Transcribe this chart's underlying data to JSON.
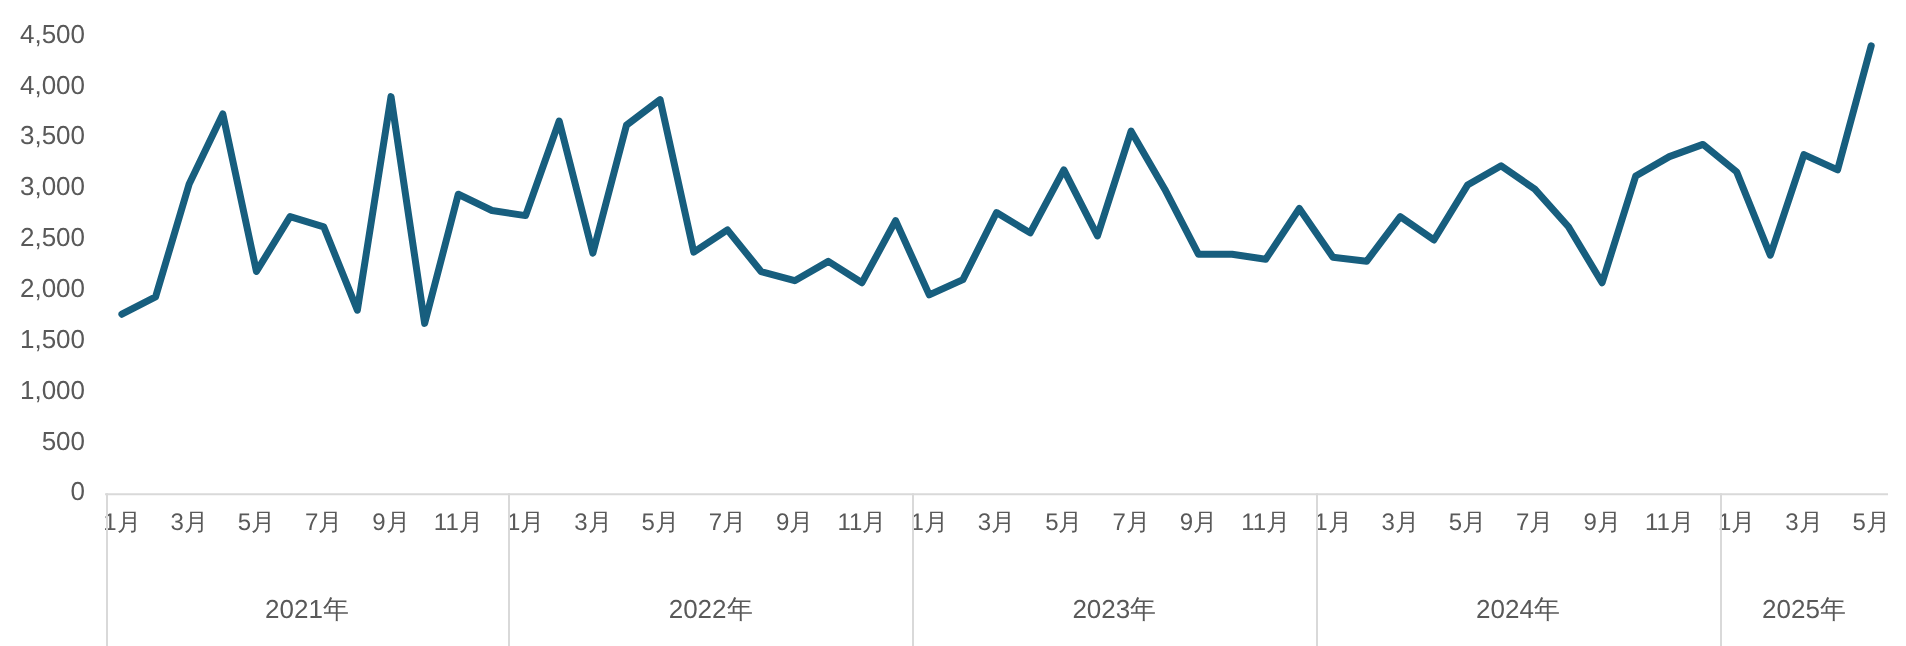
{
  "chart_data": {
    "type": "line",
    "categories": [
      "1月",
      null,
      "3月",
      null,
      "5月",
      null,
      "7月",
      null,
      "9月",
      null,
      "11月",
      null,
      "1月",
      null,
      "3月",
      null,
      "5月",
      null,
      "7月",
      null,
      "9月",
      null,
      "11月",
      null,
      "1月",
      null,
      "3月",
      null,
      "5月",
      null,
      "7月",
      null,
      "9月",
      null,
      "11月",
      null,
      "1月",
      null,
      "3月",
      null,
      "5月",
      null,
      "7月",
      null,
      "9月",
      null,
      "11月",
      null,
      "1月",
      null,
      "3月",
      null,
      "5月"
    ],
    "series": [
      {
        "color": "#175e7e",
        "values": [
          1760,
          1930,
          3040,
          3730,
          2180,
          2720,
          2620,
          1800,
          3900,
          1670,
          2940,
          2780,
          2730,
          3660,
          2360,
          3620,
          3870,
          2370,
          2590,
          2180,
          2090,
          2280,
          2070,
          2680,
          1950,
          2100,
          2760,
          2560,
          3180,
          2530,
          3560,
          2990,
          2350,
          2350,
          2300,
          2800,
          2320,
          2280,
          2720,
          2490,
          3030,
          3220,
          2990,
          2620,
          2070,
          3120,
          3310,
          3430,
          3160,
          2340,
          3330,
          3180,
          4400
        ]
      }
    ],
    "ylim": [
      0,
      4500
    ],
    "yticks": [
      0,
      500,
      {
        "value": 1000,
        "label": "1,000"
      },
      {
        "value": 1500,
        "label": "1,500"
      },
      {
        "value": 2000,
        "label": "2,000"
      },
      {
        "value": 2500,
        "label": "2,500"
      },
      {
        "value": 3000,
        "label": "3,000"
      },
      {
        "value": 3500,
        "label": "3,500"
      },
      {
        "value": 4000,
        "label": "4,000"
      },
      {
        "value": 4500,
        "label": "4,500"
      }
    ],
    "annotations": [
      "2021年",
      "2022年",
      "2023年",
      "2024年",
      "2025年"
    ],
    "grid": false,
    "legend": false,
    "marker": "none",
    "line_style": "solid"
  }
}
